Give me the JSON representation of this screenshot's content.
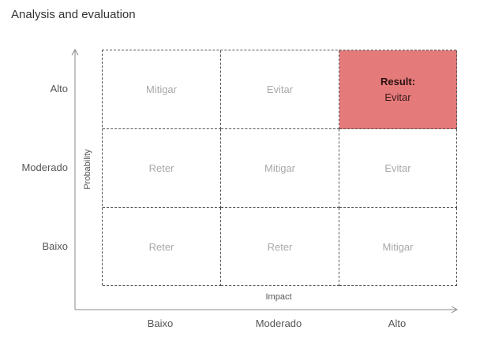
{
  "title": "Analysis and evaluation",
  "y_axis": {
    "title": "Probability",
    "levels": [
      "Alto",
      "Moderado",
      "Baixo"
    ]
  },
  "x_axis": {
    "title": "Impact",
    "levels": [
      "Baixo",
      "Moderado",
      "Alto"
    ]
  },
  "matrix": {
    "rows": [
      [
        "Mitigar",
        "Evitar",
        "Evitar"
      ],
      [
        "Reter",
        "Mitigar",
        "Evitar"
      ],
      [
        "Reter",
        "Reter",
        "Mitigar"
      ]
    ],
    "result": {
      "heading": "Result:",
      "value": "Evitar",
      "row": 0,
      "col": 2
    }
  },
  "colors": {
    "result_fill": "#e57a7a",
    "cell_text": "#a8a8a8",
    "grid_line": "#555555"
  }
}
